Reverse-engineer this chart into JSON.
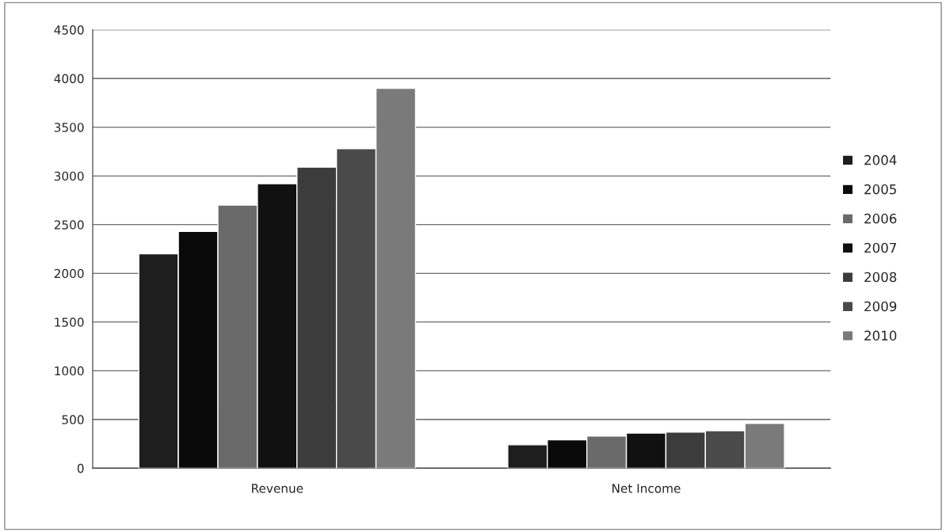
{
  "chart_data": {
    "type": "bar",
    "categories": [
      "Revenue",
      "Net Income"
    ],
    "series": [
      {
        "name": "2004",
        "color": "#1e1e1e",
        "values": [
          2200,
          240
        ]
      },
      {
        "name": "2005",
        "color": "#0a0a0a",
        "values": [
          2430,
          290
        ]
      },
      {
        "name": "2006",
        "color": "#6a6a6a",
        "values": [
          2700,
          330
        ]
      },
      {
        "name": "2007",
        "color": "#111111",
        "values": [
          2920,
          360
        ]
      },
      {
        "name": "2008",
        "color": "#3c3c3c",
        "values": [
          3090,
          370
        ]
      },
      {
        "name": "2009",
        "color": "#4a4a4a",
        "values": [
          3280,
          385
        ]
      },
      {
        "name": "2010",
        "color": "#7a7a7a",
        "values": [
          3900,
          460
        ]
      }
    ],
    "ylim": [
      0,
      4500
    ],
    "yticks": [
      0,
      500,
      1000,
      1500,
      2000,
      2500,
      3000,
      3500,
      4000,
      4500
    ],
    "grid": "y",
    "legend": "right"
  }
}
